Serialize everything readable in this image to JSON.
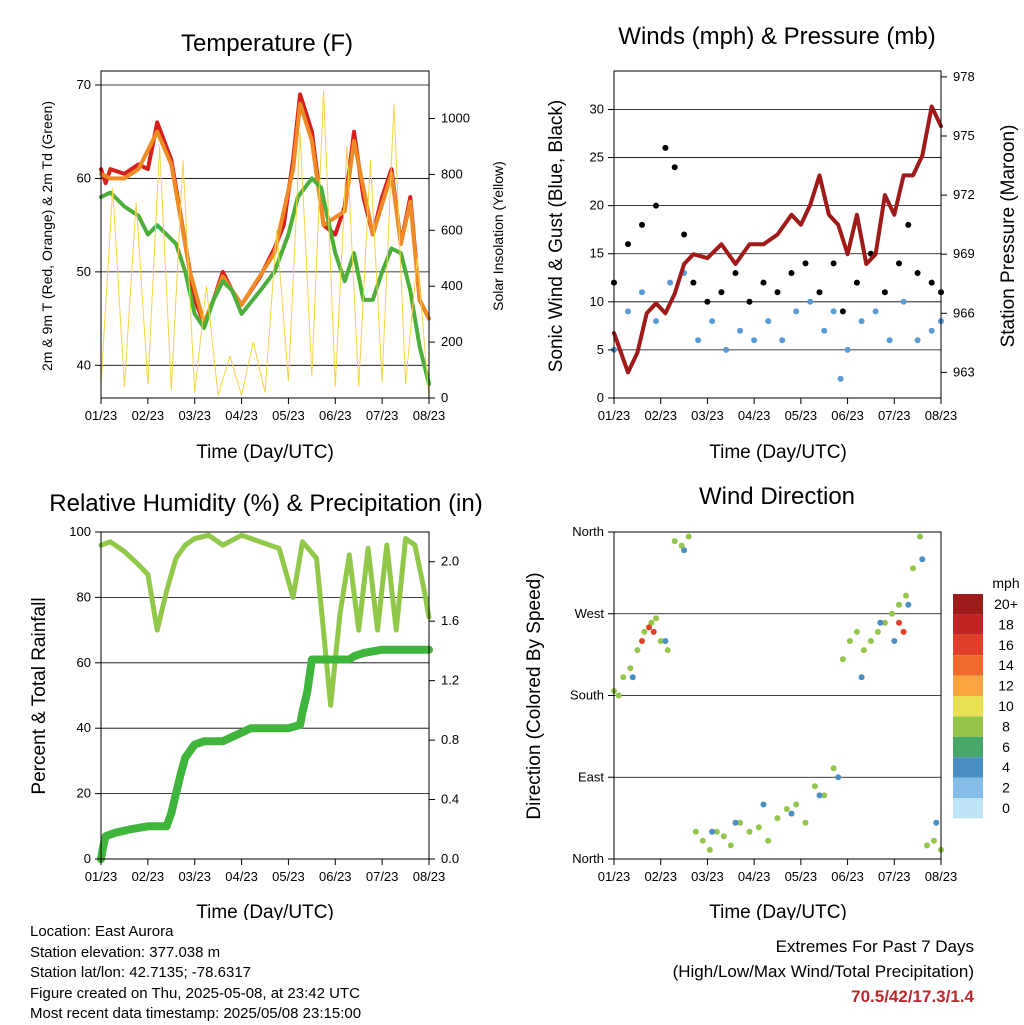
{
  "info": {
    "location": "Location: East Aurora",
    "elevation": "Station elevation: 377.038 m",
    "latlon": "Station lat/lon: 42.7135; -78.6317",
    "created": "Figure created on Thu, 2025-05-08, at 23:42 UTC",
    "recent": "Most recent data timestamp: 2025/05/08 23:15:00"
  },
  "extremes": {
    "title": "Extremes For Past 7 Days",
    "subtitle": "(High/Low/Max Wind/Total Precipitation)",
    "values": "70.5/42/17.3/1.4",
    "value_color": "#c0262d"
  },
  "chart_data": [
    {
      "type": "line",
      "title": "Temperature (F)",
      "xlabel": "Time (Day/UTC)",
      "ylabel": "2m & 9m T (Red, Orange) & 2m Td (Green)",
      "y2label": "Solar Insolation (Yellow)",
      "x_ticks": [
        "01/23",
        "02/23",
        "03/23",
        "04/23",
        "05/23",
        "06/23",
        "07/23",
        "08/23"
      ],
      "xlim": [
        0,
        7
      ],
      "ylim": [
        36.5,
        71.5
      ],
      "y_ticks": [
        40,
        50,
        60,
        70
      ],
      "y2lim": [
        0,
        1170
      ],
      "y2_ticks": [
        0,
        200,
        400,
        600,
        800,
        1000
      ],
      "grid": true,
      "series": [
        {
          "color": "#d62020",
          "x": [
            0,
            0.1,
            0.2,
            0.5,
            0.8,
            1,
            1.2,
            1.5,
            1.7,
            1.9,
            2,
            2.2,
            2.4,
            2.6,
            2.8,
            3,
            3.4,
            3.7,
            3.9,
            4.1,
            4.25,
            4.5,
            4.75,
            5,
            5.2,
            5.4,
            5.6,
            5.8,
            6,
            6.2,
            6.4,
            6.6,
            6.8,
            7
          ],
          "y": [
            61,
            59.5,
            61,
            60.5,
            61.5,
            61,
            66,
            62,
            56,
            50,
            47,
            44.5,
            47,
            50,
            48,
            46.5,
            49.5,
            52.5,
            55,
            62,
            69,
            65,
            55,
            54,
            57,
            65,
            58,
            54,
            58,
            61,
            53,
            58,
            47,
            45
          ]
        },
        {
          "color": "#f08a24",
          "x": [
            0,
            0.2,
            0.5,
            0.8,
            1.2,
            1.5,
            1.9,
            2.2,
            2.6,
            3,
            3.7,
            4.1,
            4.25,
            4.5,
            4.75,
            5.2,
            5.4,
            5.8,
            6.2,
            6.4,
            6.6,
            6.8,
            7
          ],
          "y": [
            60.5,
            60,
            60,
            61,
            65,
            61.5,
            50,
            44.5,
            49.5,
            46.5,
            52,
            61,
            68,
            64,
            55,
            56.5,
            64,
            54,
            60.5,
            53,
            57.5,
            47,
            45
          ]
        },
        {
          "color": "#4caf3c",
          "x": [
            0,
            0.2,
            0.5,
            0.8,
            1,
            1.2,
            1.4,
            1.6,
            1.8,
            2,
            2.2,
            2.4,
            2.6,
            2.8,
            3,
            3.4,
            3.7,
            4,
            4.2,
            4.5,
            4.7,
            5,
            5.2,
            5.4,
            5.6,
            5.8,
            6,
            6.2,
            6.4,
            6.6,
            6.8,
            7
          ],
          "y": [
            58,
            58.5,
            57,
            56,
            54,
            55,
            54,
            53,
            50,
            45.5,
            44,
            47,
            49,
            48,
            45.5,
            48,
            50,
            54,
            58,
            60,
            59,
            52,
            49,
            52,
            47,
            47,
            50,
            52.5,
            52,
            48,
            42,
            38
          ]
        },
        {
          "color": "#f5d442",
          "x": [
            0,
            0.25,
            0.5,
            0.75,
            1,
            1.25,
            1.5,
            1.75,
            2,
            2.25,
            2.5,
            2.75,
            3,
            3.25,
            3.5,
            3.75,
            4,
            4.25,
            4.5,
            4.75,
            5,
            5.25,
            5.5,
            5.75,
            6,
            6.25,
            6.5,
            6.75,
            7
          ],
          "y": [
            50,
            750,
            40,
            700,
            50,
            900,
            30,
            850,
            20,
            400,
            10,
            150,
            10,
            200,
            20,
            600,
            60,
            950,
            80,
            1100,
            40,
            900,
            40,
            850,
            60,
            1050,
            50,
            500,
            0
          ]
        }
      ]
    },
    {
      "type": "scatter",
      "title": "Winds (mph) & Pressure (mb)",
      "xlabel": "Time (Day/UTC)",
      "ylabel": "Sonic Wind & Gust (Blue, Black)",
      "y2label": "Station Pressure (Maroon)",
      "x_ticks": [
        "01/23",
        "02/23",
        "03/23",
        "04/23",
        "05/23",
        "06/23",
        "07/23",
        "08/23"
      ],
      "xlim": [
        0,
        7
      ],
      "ylim": [
        0,
        34
      ],
      "y_ticks": [
        0,
        5,
        10,
        15,
        20,
        25,
        30
      ],
      "y2lim": [
        961.7,
        978.3
      ],
      "y2_ticks": [
        963,
        966,
        969,
        972,
        975,
        978
      ],
      "grid": true,
      "series": [
        {
          "color": "#5b9bd5",
          "x": [
            0,
            0.3,
            0.6,
            0.9,
            1.2,
            1.5,
            1.8,
            2.1,
            2.4,
            2.7,
            3,
            3.3,
            3.6,
            3.9,
            4.2,
            4.5,
            4.7,
            4.85,
            5,
            5.3,
            5.6,
            5.9,
            6.2,
            6.5,
            6.8,
            7
          ],
          "y": [
            5,
            9,
            11,
            8,
            12,
            13,
            6,
            8,
            5,
            7,
            6,
            8,
            6,
            9,
            10,
            7,
            9,
            2,
            5,
            8,
            9,
            6,
            10,
            6,
            7,
            8
          ]
        },
        {
          "color": "#000000",
          "x": [
            0,
            0.3,
            0.6,
            0.9,
            1.1,
            1.3,
            1.5,
            1.7,
            2,
            2.3,
            2.6,
            2.9,
            3.2,
            3.5,
            3.8,
            4.1,
            4.4,
            4.7,
            4.9,
            5.2,
            5.5,
            5.8,
            6.1,
            6.3,
            6.5,
            6.8,
            7
          ],
          "y": [
            12,
            16,
            18,
            20,
            26,
            24,
            17,
            12,
            10,
            11,
            13,
            10,
            12,
            11,
            13,
            14,
            11,
            14,
            9,
            12,
            15,
            11,
            14,
            18,
            13,
            12,
            11
          ]
        },
        {
          "color": "#a01a1a",
          "x": [
            0,
            0.15,
            0.3,
            0.5,
            0.7,
            0.9,
            1.1,
            1.3,
            1.5,
            1.7,
            2,
            2.3,
            2.6,
            2.9,
            3.2,
            3.5,
            3.8,
            4,
            4.2,
            4.4,
            4.6,
            4.8,
            5,
            5.2,
            5.4,
            5.6,
            5.8,
            6,
            6.2,
            6.4,
            6.6,
            6.8,
            7
          ],
          "y": [
            965,
            964,
            963,
            964,
            966,
            966.5,
            966,
            967,
            968.5,
            969,
            968.8,
            969.5,
            968.5,
            969.5,
            969.5,
            970,
            971,
            970.5,
            971.5,
            973,
            971,
            970.5,
            969,
            971,
            968.5,
            969,
            972,
            971,
            973,
            973,
            974,
            976.5,
            975.5
          ]
        }
      ]
    },
    {
      "type": "line",
      "title": "Relative Humidity (%) & Precipitation (in)",
      "xlabel": "Time (Day/UTC)",
      "ylabel": "Percent & Total Rainfall",
      "x_ticks": [
        "01/23",
        "02/23",
        "03/23",
        "04/23",
        "05/23",
        "06/23",
        "07/23",
        "08/23"
      ],
      "xlim": [
        0,
        7
      ],
      "ylim": [
        0,
        100
      ],
      "y_ticks": [
        0,
        20,
        40,
        60,
        80,
        100
      ],
      "y2lim": [
        0,
        2.2
      ],
      "y2_ticks": [
        "0.0",
        "0.4",
        "0.8",
        "1.2",
        "1.6",
        "2.0"
      ],
      "grid": true,
      "series": [
        {
          "color": "#92c84a",
          "x": [
            0,
            0.2,
            0.5,
            0.8,
            1,
            1.2,
            1.4,
            1.6,
            1.8,
            2,
            2.3,
            2.6,
            3,
            3.4,
            3.8,
            4.1,
            4.3,
            4.6,
            4.9,
            5.1,
            5.3,
            5.5,
            5.7,
            5.9,
            6.1,
            6.3,
            6.5,
            6.7,
            6.9,
            7
          ],
          "y": [
            96,
            97,
            94,
            90,
            87,
            70,
            82,
            92,
            96,
            98,
            99,
            96,
            99,
            97,
            95,
            80,
            97,
            92,
            47,
            75,
            93,
            70,
            95,
            70,
            96,
            70,
            98,
            96,
            82,
            74
          ]
        },
        {
          "color": "#3fb53c",
          "x": [
            0,
            0.05,
            0.1,
            0.3,
            0.6,
            1,
            1.4,
            1.5,
            1.6,
            1.7,
            1.8,
            2,
            2.2,
            2.6,
            2.9,
            3.2,
            3.6,
            4,
            4.25,
            4.3,
            4.4,
            4.5,
            5,
            5.3,
            5.4,
            5.6,
            6,
            6.5,
            7
          ],
          "y": [
            0,
            4,
            7,
            8,
            9,
            10,
            10,
            14,
            20,
            26,
            31,
            35,
            36,
            36,
            38,
            40,
            40,
            40,
            41,
            45,
            51,
            61,
            61,
            61,
            62,
            63,
            64,
            64,
            64
          ]
        }
      ]
    },
    {
      "type": "scatter",
      "title": "Wind Direction",
      "xlabel": "Time (Day/UTC)",
      "ylabel": "Direction (Colored By Speed)",
      "x_ticks": [
        "01/23",
        "02/23",
        "03/23",
        "04/23",
        "05/23",
        "06/23",
        "07/23",
        "08/23"
      ],
      "xlim": [
        0,
        7
      ],
      "ylim": [
        0,
        360
      ],
      "y_ticks": [
        "North",
        "East",
        "South",
        "West",
        "North"
      ],
      "grid": true,
      "legend_title": "mph",
      "legend_labels": [
        "20+",
        "18",
        "16",
        "14",
        "12",
        "10",
        "8",
        "6",
        "4",
        "2",
        "0"
      ],
      "legend_colors": [
        "#9e1b1b",
        "#c22525",
        "#e0402a",
        "#f06a2c",
        "#f9a441",
        "#e8df55",
        "#95c54a",
        "#47a86a",
        "#4a8fc4",
        "#83bce6",
        "#bde3f7"
      ],
      "legend_placement": "right",
      "series": [
        {
          "color": "#95c54a",
          "x": [
            0,
            0.1,
            0.2,
            0.35,
            0.5,
            0.65,
            0.8,
            0.9,
            1,
            1.15,
            1.3,
            1.45,
            1.6,
            1.75,
            1.9,
            2.05,
            2.2,
            2.35,
            2.5,
            2.7,
            2.9,
            3.1,
            3.3,
            3.5,
            3.7,
            3.9,
            4.1,
            4.3,
            4.5,
            4.7,
            4.9,
            5.05,
            5.2,
            5.35,
            5.5,
            5.65,
            5.8,
            5.95,
            6.1,
            6.25,
            6.4,
            6.55,
            6.7,
            6.85,
            7
          ],
          "y": [
            185,
            180,
            200,
            210,
            230,
            250,
            260,
            265,
            240,
            230,
            350,
            345,
            355,
            30,
            20,
            10,
            30,
            25,
            15,
            40,
            30,
            35,
            20,
            45,
            55,
            60,
            40,
            80,
            70,
            100,
            220,
            240,
            250,
            230,
            240,
            250,
            260,
            270,
            280,
            290,
            320,
            355,
            15,
            20,
            10
          ]
        },
        {
          "color": "#4a8fc4",
          "x": [
            0.4,
            1.1,
            1.5,
            2.1,
            2.6,
            3.2,
            3.8,
            4.4,
            4.8,
            5.3,
            5.7,
            6.0,
            6.3,
            6.6,
            6.9
          ],
          "y": [
            200,
            240,
            340,
            30,
            40,
            60,
            50,
            70,
            90,
            200,
            260,
            240,
            280,
            330,
            40
          ]
        },
        {
          "color": "#e0402a",
          "x": [
            0.6,
            0.75,
            0.85,
            6.1,
            6.2
          ],
          "y": [
            240,
            255,
            250,
            260,
            250
          ]
        }
      ]
    }
  ]
}
